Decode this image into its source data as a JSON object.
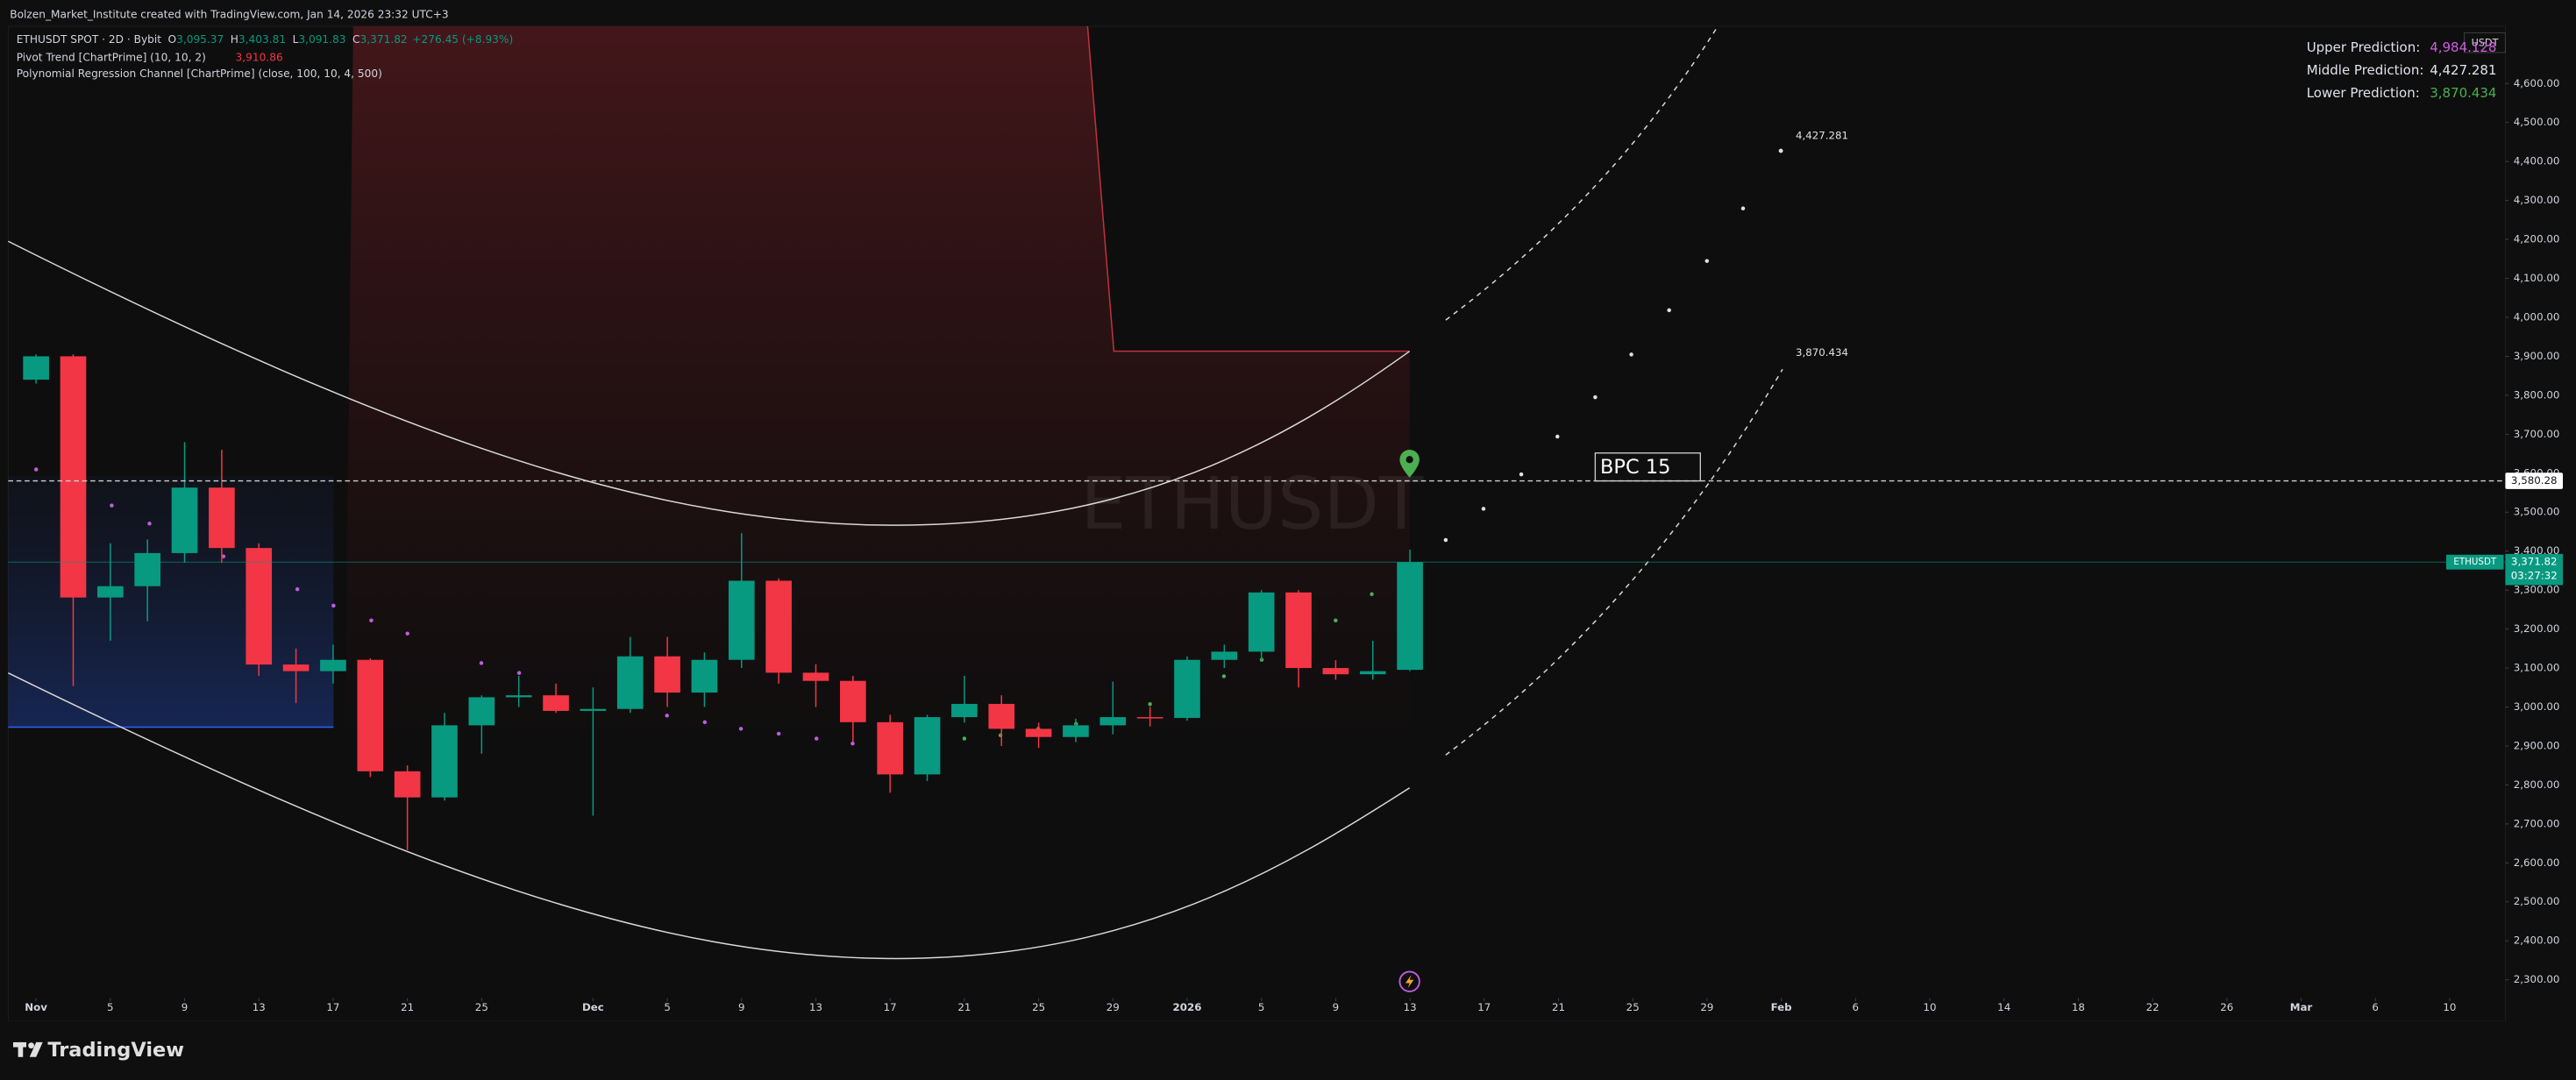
{
  "credit": "Bolzen_Market_Institute created with TradingView.com, Jan 14, 2026 23:32 UTC+3",
  "chart_data": {
    "type": "candlestick",
    "symbol": "ETHUSDT SPOT · 2D · Bybit",
    "ohlc_legend": [
      {
        "key": "O",
        "value": "3,095.37"
      },
      {
        "key": "H",
        "value": "3,403.81"
      },
      {
        "key": "L",
        "value": "3,091.83"
      },
      {
        "key": "C",
        "value": "3,371.82"
      }
    ],
    "change": "+276.45 (+8.93%)",
    "indicators": [
      {
        "name": "Pivot Trend [ChartPrime] (10, 10, 2)",
        "value": "3,910.86"
      },
      {
        "name": "Polynomial Regression Channel [ChartPrime] (close, 100, 10, 4, 500)"
      }
    ],
    "up_color": "#089981",
    "down_color": "#f23645",
    "x": [
      0,
      2,
      4,
      6,
      8,
      10,
      12,
      14,
      16,
      18,
      20,
      22,
      24,
      26,
      28,
      30,
      32,
      34,
      36,
      38,
      40,
      42,
      44,
      46,
      48,
      50,
      52,
      54,
      56,
      58,
      60,
      62,
      64,
      66,
      68,
      70,
      72,
      74
    ],
    "open": [
      3840,
      3900,
      3281,
      3310,
      3395,
      3563,
      3408,
      3109,
      3092,
      3121,
      2835,
      2768,
      2953,
      3025,
      3030,
      2990,
      2995,
      3130,
      3037,
      3121,
      3324,
      3088,
      3067,
      2961,
      2827,
      2974,
      3008,
      2944,
      2923,
      2953,
      2974,
      2972,
      3121,
      3142,
      3294,
      3100,
      3084,
      3095.37
    ],
    "high": [
      3905,
      3905,
      3420,
      3430,
      3680,
      3660,
      3420,
      3150,
      3160,
      3125,
      2850,
      2985,
      3030,
      3080,
      3060,
      3050,
      3180,
      3180,
      3140,
      3446,
      3330,
      3110,
      3080,
      2980,
      2980,
      3080,
      3030,
      2960,
      2970,
      3065,
      3000,
      3130,
      3160,
      3300,
      3300,
      3120,
      3170,
      3403.81
    ],
    "low": [
      3830,
      3054,
      3170,
      3220,
      3370,
      3370,
      3080,
      3010,
      3060,
      2820,
      2633,
      2760,
      2880,
      3000,
      2985,
      2721,
      2985,
      3000,
      3000,
      3100,
      3060,
      3000,
      2910,
      2780,
      2810,
      2960,
      2900,
      2895,
      2910,
      2930,
      2950,
      2965,
      3100,
      3120,
      3050,
      3070,
      3070,
      3091.83
    ],
    "close": [
      3900,
      3281,
      3310,
      3395,
      3563,
      3408,
      3109,
      3092,
      3121,
      2835,
      2768,
      2953,
      3025,
      3030,
      2990,
      2995,
      3130,
      3037,
      3121,
      3324,
      3088,
      3067,
      2961,
      2827,
      2974,
      3008,
      2944,
      2923,
      2953,
      2974,
      2972,
      3121,
      3142,
      3294,
      3100,
      3084,
      3092,
      3371.82
    ],
    "xlim": [
      -1.5,
      133
    ],
    "xticks": [
      {
        "value": 0,
        "label": "Nov"
      },
      {
        "value": 4,
        "label": "5"
      },
      {
        "value": 8,
        "label": "9"
      },
      {
        "value": 12,
        "label": "13"
      },
      {
        "value": 16,
        "label": "17"
      },
      {
        "value": 20,
        "label": "21"
      },
      {
        "value": 24,
        "label": "25"
      },
      {
        "value": 30,
        "label": "Dec"
      },
      {
        "value": 34,
        "label": "5"
      },
      {
        "value": 38,
        "label": "9"
      },
      {
        "value": 42,
        "label": "13"
      },
      {
        "value": 46,
        "label": "17"
      },
      {
        "value": 50,
        "label": "21"
      },
      {
        "value": 54,
        "label": "25"
      },
      {
        "value": 58,
        "label": "29"
      },
      {
        "value": 62,
        "label": "2026"
      },
      {
        "value": 66,
        "label": "5"
      },
      {
        "value": 70,
        "label": "9"
      },
      {
        "value": 74,
        "label": "13"
      },
      {
        "value": 78,
        "label": "17"
      },
      {
        "value": 82,
        "label": "21"
      },
      {
        "value": 86,
        "label": "25"
      },
      {
        "value": 90,
        "label": "29"
      },
      {
        "value": 94,
        "label": "Feb"
      },
      {
        "value": 98,
        "label": "6"
      },
      {
        "value": 102,
        "label": "10"
      },
      {
        "value": 106,
        "label": "14"
      },
      {
        "value": 110,
        "label": "18"
      },
      {
        "value": 114,
        "label": "22"
      },
      {
        "value": 118,
        "label": "26"
      },
      {
        "value": 122,
        "label": "Mar"
      },
      {
        "value": 126,
        "label": "6"
      },
      {
        "value": 130,
        "label": "10"
      }
    ],
    "ylim": [
      2266,
      4747
    ],
    "yticks": [
      {
        "value": 2300,
        "label": "2,300.00"
      },
      {
        "value": 2400,
        "label": "2,400.00"
      },
      {
        "value": 2500,
        "label": "2,500.00"
      },
      {
        "value": 2600,
        "label": "2,600.00"
      },
      {
        "value": 2700,
        "label": "2,700.00"
      },
      {
        "value": 2800,
        "label": "2,800.00"
      },
      {
        "value": 2900,
        "label": "2,900.00"
      },
      {
        "value": 3000,
        "label": "3,000.00"
      },
      {
        "value": 3100,
        "label": "3,100.00"
      },
      {
        "value": 3200,
        "label": "3,200.00"
      },
      {
        "value": 3300,
        "label": "3,300.00"
      },
      {
        "value": 3400,
        "label": "3,400.00"
      },
      {
        "value": 3500,
        "label": "3,500.00"
      },
      {
        "value": 3600,
        "label": "3,600.00"
      },
      {
        "value": 3700,
        "label": "3,700.00"
      },
      {
        "value": 3800,
        "label": "3,800.00"
      },
      {
        "value": 3900,
        "label": "3,900.00"
      },
      {
        "value": 4000,
        "label": "4,000.00"
      },
      {
        "value": 4100,
        "label": "4,100.00"
      },
      {
        "value": 4200,
        "label": "4,200.00"
      },
      {
        "value": 4300,
        "label": "4,300.00"
      },
      {
        "value": 4400,
        "label": "4,400.00"
      },
      {
        "value": 4500,
        "label": "4,500.00"
      },
      {
        "value": 4600,
        "label": "4,600.00"
      }
    ],
    "currency": "USDT",
    "watermark": "ETHUSDT",
    "price_line": {
      "value": 3580.28,
      "label": "3,580.28"
    },
    "last_price": {
      "value": 3371.82,
      "label": "3,371.82",
      "symbol": "ETHUSDT",
      "countdown": "03:27:32"
    },
    "predictions": [
      {
        "label": "Upper Prediction:",
        "value": "4,984.128",
        "color": "#d05ce3"
      },
      {
        "label": "Middle Prediction:",
        "value": "4,427.281",
        "color": "#e0e3eb"
      },
      {
        "label": "Lower Prediction:",
        "value": "3,870.434",
        "color": "#4caf50"
      }
    ],
    "forecast_labels": [
      {
        "value": 4427.281,
        "label": "4,427.281"
      },
      {
        "value": 3870.434,
        "label": "3,870.434"
      }
    ],
    "annotation": "BPC 15"
  },
  "footer": {
    "logo": "TradingView"
  }
}
